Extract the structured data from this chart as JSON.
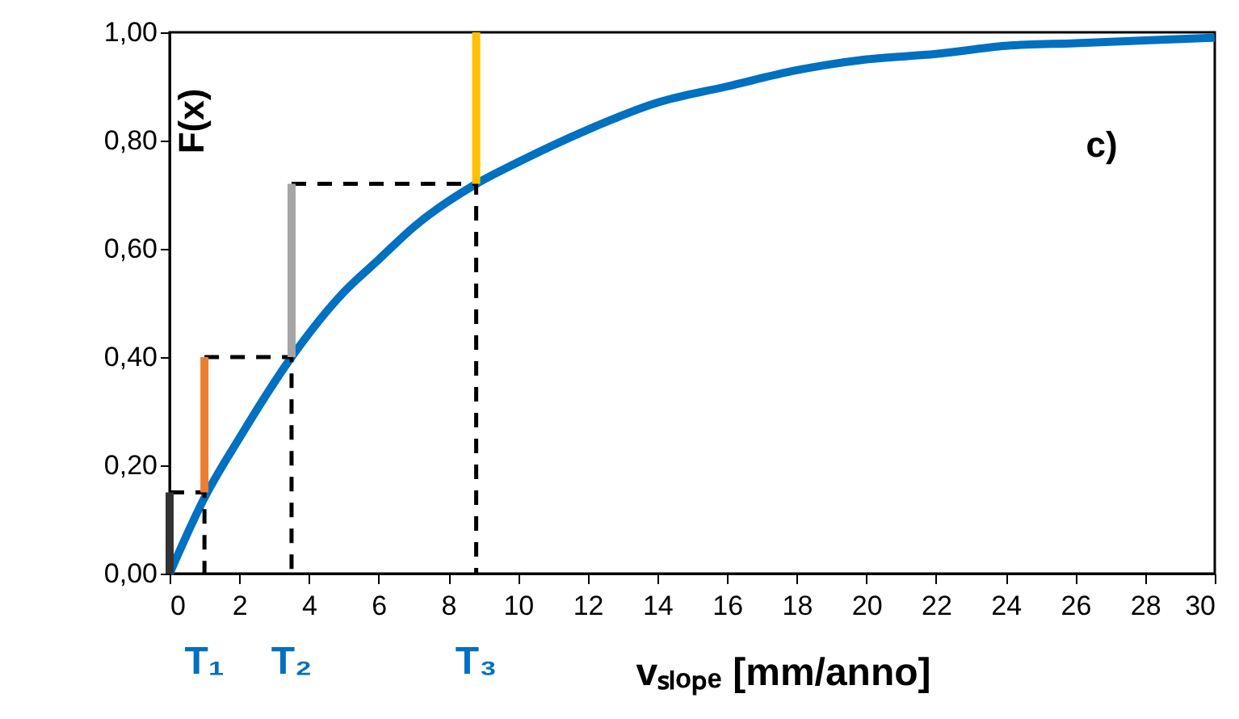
{
  "chart_data": {
    "type": "line",
    "xlabel": "vₛₗₒₚₑ [mm/anno]",
    "ylabel": "F(x)",
    "xlim": [
      0,
      30
    ],
    "xticks": [
      0,
      2,
      4,
      6,
      8,
      10,
      12,
      14,
      16,
      18,
      20,
      22,
      24,
      26,
      28,
      30
    ],
    "ylim": [
      0,
      1
    ],
    "yticks": [
      {
        "value": 0,
        "label": "0,00"
      },
      {
        "value": 0.2,
        "label": "0,20"
      },
      {
        "value": 0.4,
        "label": "0,40"
      },
      {
        "value": 0.6,
        "label": "0,60"
      },
      {
        "value": 0.8,
        "label": "0,80"
      },
      {
        "value": 1,
        "label": "1,00"
      }
    ],
    "annotations": [
      "c)",
      "T₁",
      "T₂",
      "T₃"
    ],
    "series": [
      {
        "color": "#0070c0",
        "x": [
          0,
          1,
          2,
          3.5,
          5,
          6,
          7,
          8.8,
          10,
          12,
          14,
          16,
          18,
          20,
          22,
          24,
          26,
          28,
          30
        ],
        "values": [
          0,
          0.14,
          0.25,
          0.4,
          0.52,
          0.58,
          0.64,
          0.72,
          0.76,
          0.82,
          0.87,
          0.9,
          0.93,
          0.95,
          0.96,
          0.975,
          0.98,
          0.985,
          0.99
        ]
      },
      {
        "color": "#000000",
        "line_style": "dashed",
        "x": [
          0,
          1,
          1
        ],
        "values": [
          0.15,
          0.15,
          0
        ]
      },
      {
        "color": "#000000",
        "line_style": "dashed",
        "x": [
          1,
          3.5,
          3.5
        ],
        "values": [
          0.4,
          0.4,
          0
        ]
      },
      {
        "color": "#000000",
        "line_style": "dashed",
        "x": [
          3.5,
          8.8,
          8.8
        ],
        "values": [
          0.72,
          0.72,
          0
        ]
      },
      {
        "color": "#333333",
        "x": [
          0,
          0
        ],
        "values": [
          0,
          0.15
        ]
      },
      {
        "color": "#ed7d31",
        "x": [
          1,
          1
        ],
        "values": [
          0.15,
          0.4
        ]
      },
      {
        "color": "#a5a5a5",
        "x": [
          3.5,
          3.5
        ],
        "values": [
          0.4,
          0.72
        ]
      },
      {
        "color": "#ffc000",
        "x": [
          8.8,
          8.8
        ],
        "values": [
          0.72,
          1.0
        ]
      }
    ]
  }
}
